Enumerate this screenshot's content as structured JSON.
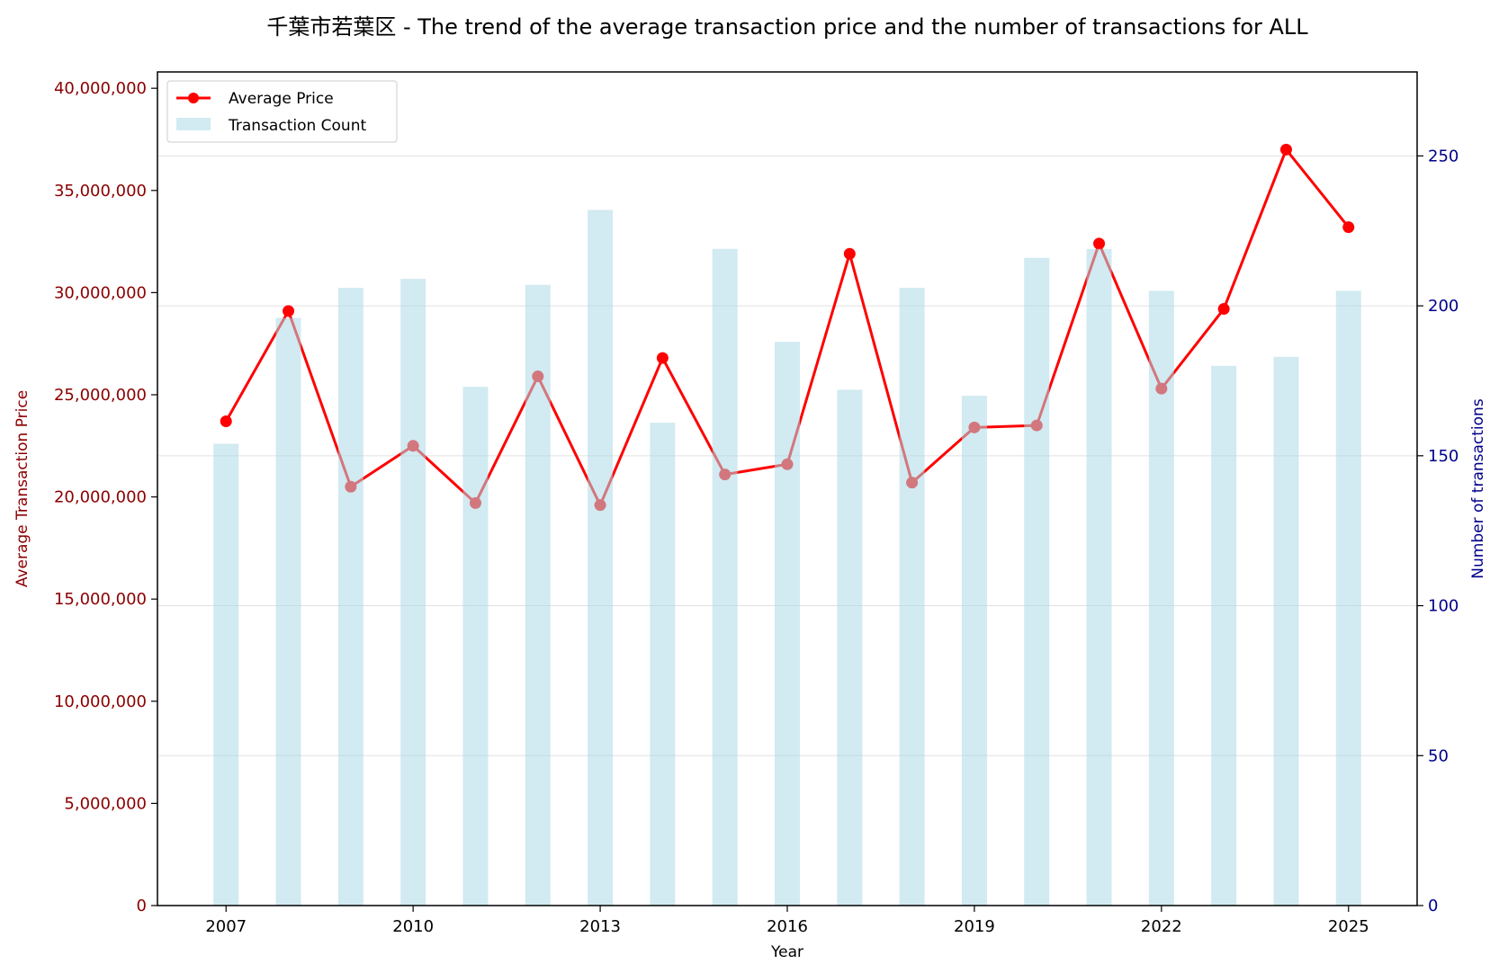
{
  "colors": {
    "price_line": "#ff0000",
    "count_bar": "#add8e6",
    "left_axis": "#8b0000",
    "right_axis": "#00008b",
    "grid": "#d9d9d9"
  },
  "chart_data": {
    "type": "bar+line",
    "title": "千葉市若葉区 - The trend of the average transaction price and the number of transactions for ALL",
    "xlabel": "Year",
    "ylabel_left": "Average Transaction Price",
    "ylabel_right": "Number of transactions",
    "x": [
      2007,
      2008,
      2009,
      2010,
      2011,
      2012,
      2013,
      2014,
      2015,
      2016,
      2017,
      2018,
      2019,
      2020,
      2021,
      2022,
      2023,
      2024,
      2025
    ],
    "x_ticks": [
      "2007",
      "2010",
      "2013",
      "2016",
      "2019",
      "2022",
      "2025"
    ],
    "xlim": [
      2005.9,
      2026.1
    ],
    "series": [
      {
        "name": "Average Price",
        "type": "line",
        "axis": "left",
        "values": [
          23700000,
          29100000,
          20500000,
          22500000,
          19700000,
          25900000,
          19600000,
          26800000,
          21100000,
          21600000,
          31900000,
          20700000,
          23400000,
          23500000,
          32400000,
          25300000,
          29200000,
          37000000,
          33200000
        ]
      },
      {
        "name": "Transaction Count",
        "type": "bar",
        "axis": "right",
        "values": [
          154,
          196,
          206,
          209,
          173,
          207,
          232,
          161,
          219,
          188,
          172,
          206,
          170,
          216,
          219,
          205,
          180,
          183,
          205
        ]
      }
    ],
    "ylim_left": [
      0,
      40800000
    ],
    "ylim_right": [
      0,
      278
    ],
    "y_ticks_left": [
      "0",
      "5,000,000",
      "10,000,000",
      "15,000,000",
      "20,000,000",
      "25,000,000",
      "30,000,000",
      "35,000,000",
      "40,000,000"
    ],
    "y_ticks_left_values": [
      0,
      5000000,
      10000000,
      15000000,
      20000000,
      25000000,
      30000000,
      35000000,
      40000000
    ],
    "y_ticks_right": [
      "0",
      "50",
      "100",
      "150",
      "200",
      "250"
    ],
    "y_ticks_right_values": [
      0,
      50,
      100,
      150,
      200,
      250
    ],
    "grid": "right-axis horizontal",
    "legend_position": "upper-left"
  }
}
